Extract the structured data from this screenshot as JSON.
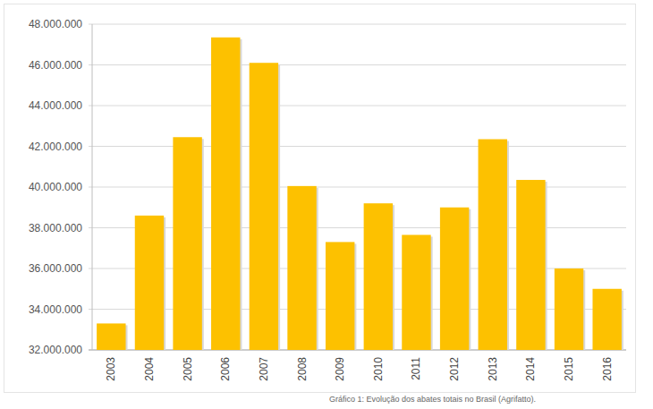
{
  "chart_data": {
    "type": "bar",
    "caption": "Gráfico 1: Evolução dos abates totais no Brasil (Agrifatto).",
    "categories": [
      "2003",
      "2004",
      "2005",
      "2006",
      "2007",
      "2008",
      "2009",
      "2010",
      "2011",
      "2012",
      "2013",
      "2014",
      "2015",
      "2016"
    ],
    "values": [
      33300000,
      38600000,
      42450000,
      47350000,
      46100000,
      40050000,
      37300000,
      39200000,
      37650000,
      39000000,
      42350000,
      40350000,
      36000000,
      35000000
    ],
    "color": "#fdc100",
    "ylim": [
      32000000,
      48000000
    ],
    "yticks": [
      {
        "value": 32000000,
        "label": "32.000.000"
      },
      {
        "value": 34000000,
        "label": "34.000.000"
      },
      {
        "value": 36000000,
        "label": "36.000.000"
      },
      {
        "value": 38000000,
        "label": "38.000.000"
      },
      {
        "value": 40000000,
        "label": "40.000.000"
      },
      {
        "value": 42000000,
        "label": "42.000.000"
      },
      {
        "value": 44000000,
        "label": "44.000.000"
      },
      {
        "value": 46000000,
        "label": "46.000.000"
      },
      {
        "value": 48000000,
        "label": "48.000.000"
      }
    ],
    "grid": true
  }
}
